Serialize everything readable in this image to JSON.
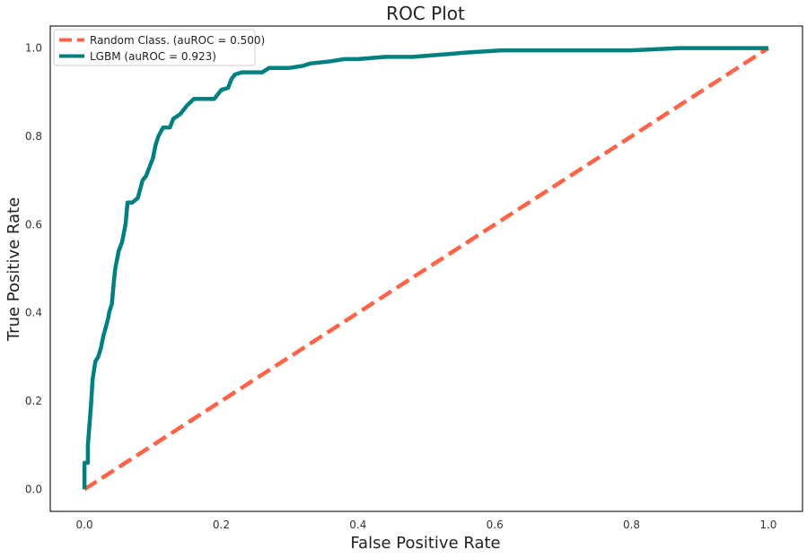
{
  "chart_data": {
    "type": "line",
    "title": "ROC Plot",
    "xlabel": "False Positive Rate",
    "ylabel": "True Positive Rate",
    "xlim": [
      -0.05,
      1.05
    ],
    "ylim": [
      -0.05,
      1.05
    ],
    "xticks": [
      0.0,
      0.2,
      0.4,
      0.6,
      0.8,
      1.0
    ],
    "xtick_labels": [
      "0.0",
      "0.2",
      "0.4",
      "0.6",
      "0.8",
      "1.0"
    ],
    "yticks": [
      0.0,
      0.2,
      0.4,
      0.6,
      0.8,
      1.0
    ],
    "ytick_labels": [
      "0.0",
      "0.2",
      "0.4",
      "0.6",
      "0.8",
      "1.0"
    ],
    "grid": false,
    "legend_position": "top-left",
    "series": [
      {
        "name": "Random Class. (auROC = 0.500)",
        "color": "#ff6347",
        "style": "dashed",
        "x": [
          0.0,
          1.0
        ],
        "y": [
          0.0,
          1.0
        ]
      },
      {
        "name": "LGBM (auROC = 0.923)",
        "color": "#008080",
        "style": "solid",
        "x": [
          0.0,
          0.0,
          0.005,
          0.005,
          0.008,
          0.01,
          0.012,
          0.016,
          0.02,
          0.024,
          0.028,
          0.03,
          0.035,
          0.036,
          0.04,
          0.043,
          0.045,
          0.05,
          0.055,
          0.06,
          0.063,
          0.07,
          0.078,
          0.085,
          0.09,
          0.1,
          0.104,
          0.108,
          0.115,
          0.125,
          0.13,
          0.14,
          0.15,
          0.16,
          0.19,
          0.195,
          0.2,
          0.21,
          0.215,
          0.22,
          0.23,
          0.25,
          0.26,
          0.27,
          0.3,
          0.32,
          0.33,
          0.36,
          0.38,
          0.4,
          0.44,
          0.48,
          0.52,
          0.56,
          0.61,
          0.7,
          0.8,
          0.87,
          0.94,
          1.0
        ],
        "y": [
          0.0,
          0.06,
          0.06,
          0.1,
          0.16,
          0.2,
          0.25,
          0.29,
          0.3,
          0.32,
          0.35,
          0.36,
          0.39,
          0.4,
          0.42,
          0.47,
          0.5,
          0.54,
          0.56,
          0.6,
          0.65,
          0.65,
          0.66,
          0.7,
          0.71,
          0.75,
          0.78,
          0.8,
          0.82,
          0.82,
          0.84,
          0.85,
          0.87,
          0.885,
          0.885,
          0.895,
          0.905,
          0.91,
          0.93,
          0.94,
          0.945,
          0.945,
          0.945,
          0.955,
          0.955,
          0.96,
          0.965,
          0.97,
          0.975,
          0.975,
          0.98,
          0.98,
          0.985,
          0.99,
          0.995,
          0.995,
          0.995,
          1.0,
          1.0,
          1.0
        ]
      }
    ]
  }
}
